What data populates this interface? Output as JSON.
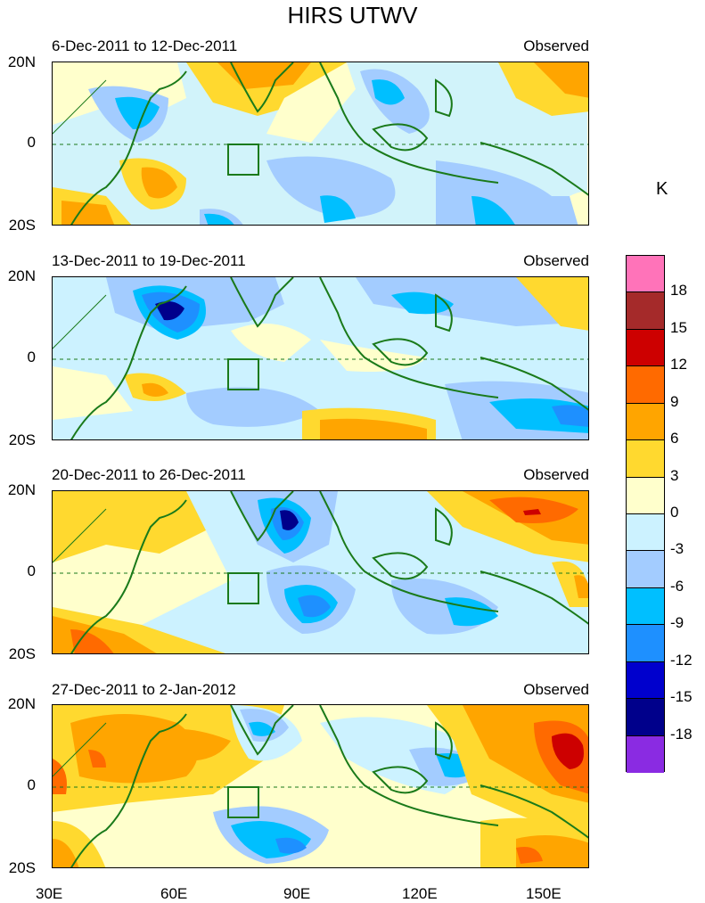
{
  "title": "HIRS UTWV",
  "unit": "K",
  "panels": [
    {
      "date_range": "6-Dec-2011 to 12-Dec-2011",
      "label": "Observed"
    },
    {
      "date_range": "13-Dec-2011 to 19-Dec-2011",
      "label": "Observed"
    },
    {
      "date_range": "20-Dec-2011 to 26-Dec-2011",
      "label": "Observed"
    },
    {
      "date_range": "27-Dec-2011 to 2-Jan-2012",
      "label": "Observed"
    }
  ],
  "y_ticks": [
    "20N",
    "0",
    "20S"
  ],
  "x_ticks": [
    "30E",
    "60E",
    "90E",
    "120E",
    "150E"
  ],
  "colorbar": {
    "labels": [
      "18",
      "15",
      "12",
      "9",
      "6",
      "3",
      "0",
      "-3",
      "-6",
      "-9",
      "-12",
      "-15",
      "-18"
    ],
    "colors": [
      "#ff73b9",
      "#a52a2a",
      "#cd0000",
      "#ff6a00",
      "#ffa500",
      "#ffd92f",
      "#ffffcc",
      "#ccf2ff",
      "#a3ccff",
      "#00bfff",
      "#1e90ff",
      "#0000cd",
      "#00008b",
      "#8a2be2"
    ]
  }
}
